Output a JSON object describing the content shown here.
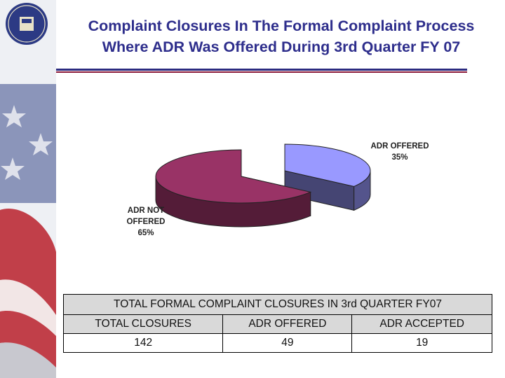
{
  "title": {
    "line1": "Complaint Closures In The Formal Complaint Process",
    "line2": "Where ADR Was Offered During 3rd Quarter FY 07"
  },
  "colors": {
    "title": "#2e2e8c",
    "rule_blue": "#2b2b80",
    "rule_red": "#8a1838",
    "adr_offered": "#9999ff",
    "adr_not_offered": "#993366"
  },
  "chart_data": {
    "type": "pie",
    "style": "3d-exploded",
    "slices": [
      {
        "label": "ADR OFFERED",
        "pct_label": "35%",
        "value": 35,
        "color": "#9999ff"
      },
      {
        "label": "ADR NOT OFFERED",
        "pct_label": "65%",
        "value": 65,
        "color": "#993366"
      }
    ]
  },
  "table": {
    "caption": "TOTAL FORMAL COMPLAINT CLOSURES IN 3rd QUARTER FY07",
    "headers": [
      "TOTAL CLOSURES",
      "ADR OFFERED",
      "ADR ACCEPTED"
    ],
    "values": [
      "142",
      "49",
      "19"
    ]
  }
}
